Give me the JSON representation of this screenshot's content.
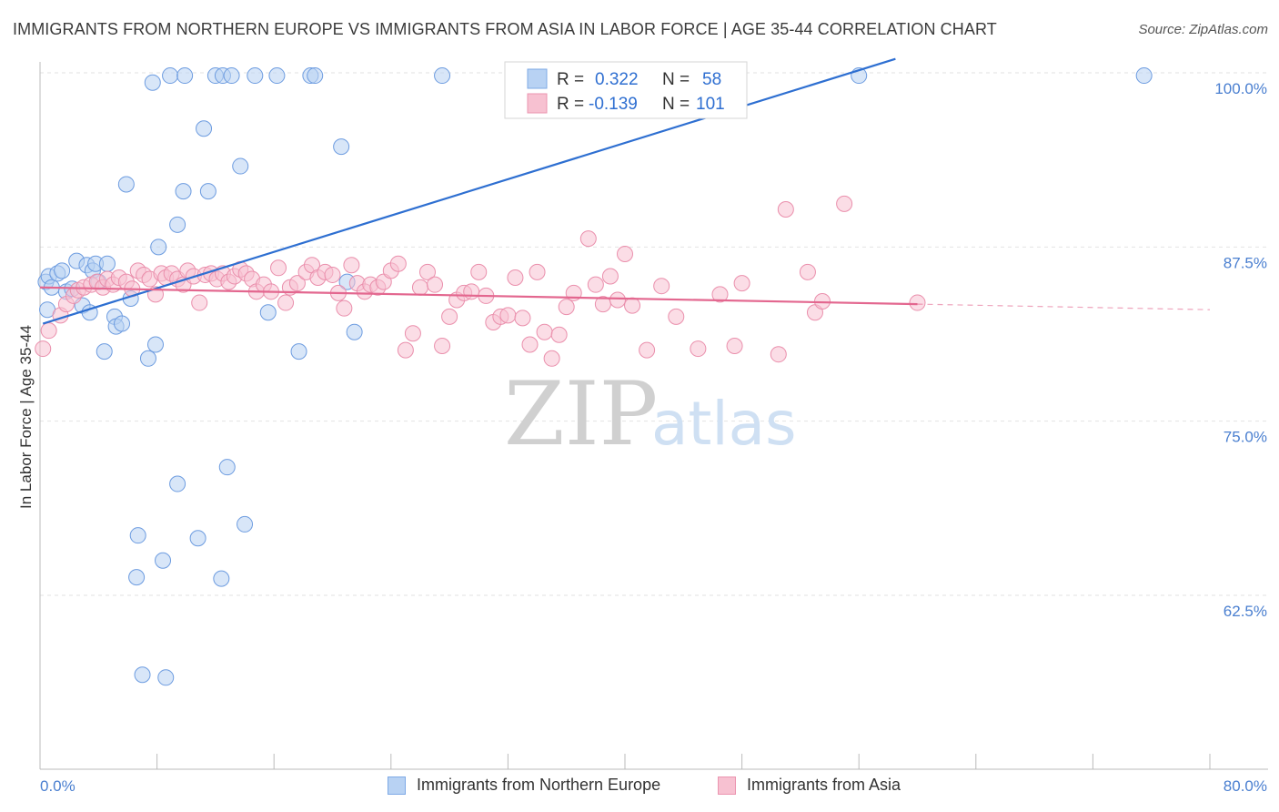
{
  "title": "IMMIGRANTS FROM NORTHERN EUROPE VS IMMIGRANTS FROM ASIA IN LABOR FORCE | AGE 35-44 CORRELATION CHART",
  "source": "Source: ZipAtlas.com",
  "colors": {
    "blue": "#2e6fd1",
    "blue_fill": "#b8d2f3",
    "pink": "#e3678f",
    "pink_fill": "#f7c1d1",
    "grid": "#e2e2e2",
    "tick_text": "#4a7fd0"
  },
  "legend": {
    "r_label": "R =",
    "n_label": "N =",
    "series1": {
      "r": "0.322",
      "n": "58"
    },
    "series2": {
      "r": "-0.139",
      "n": "101"
    }
  },
  "watermark": {
    "zip": "ZIP",
    "atlas": "atlas"
  },
  "bottom_legend": {
    "series1": "Immigrants from Northern Europe",
    "series2": "Immigrants from Asia"
  },
  "chart_data": {
    "type": "scatter",
    "title": "IMMIGRANTS FROM NORTHERN EUROPE VS IMMIGRANTS FROM ASIA IN LABOR FORCE | AGE 35-44 CORRELATION CHART",
    "xlabel": "",
    "ylabel": "In Labor Force | Age 35-44",
    "xlim": [
      0,
      80
    ],
    "ylim": [
      52,
      102
    ],
    "x_tick_labels": [
      "0.0%",
      "80.0%"
    ],
    "y_ticks": [
      {
        "value": 100,
        "label": "100.0%"
      },
      {
        "value": 87.5,
        "label": "87.5%"
      },
      {
        "value": 75,
        "label": "75.0%"
      },
      {
        "value": 62.5,
        "label": "62.5%"
      }
    ],
    "series": [
      {
        "name": "Immigrants from Northern Europe",
        "r": 0.322,
        "n": 58,
        "trend": [
          [
            0.2,
            82.0
          ],
          [
            58.5,
            101.0
          ]
        ],
        "points": [
          [
            0.4,
            85.0
          ],
          [
            0.6,
            85.4
          ],
          [
            0.8,
            84.6
          ],
          [
            1.2,
            85.6
          ],
          [
            1.5,
            85.8
          ],
          [
            1.8,
            84.3
          ],
          [
            2.2,
            84.5
          ],
          [
            2.5,
            86.5
          ],
          [
            2.9,
            83.3
          ],
          [
            3.2,
            86.2
          ],
          [
            3.4,
            82.8
          ],
          [
            3.6,
            85.8
          ],
          [
            3.8,
            86.3
          ],
          [
            4.0,
            85.0
          ],
          [
            4.4,
            80.0
          ],
          [
            4.6,
            86.3
          ],
          [
            5.1,
            82.5
          ],
          [
            5.2,
            81.8
          ],
          [
            5.6,
            82.0
          ],
          [
            5.9,
            92.0
          ],
          [
            6.2,
            83.8
          ],
          [
            6.6,
            63.8
          ],
          [
            6.7,
            66.8
          ],
          [
            7.0,
            56.8
          ],
          [
            7.4,
            79.5
          ],
          [
            7.7,
            99.3
          ],
          [
            7.9,
            80.5
          ],
          [
            8.1,
            87.5
          ],
          [
            8.4,
            65.0
          ],
          [
            8.6,
            56.6
          ],
          [
            8.9,
            99.8
          ],
          [
            9.4,
            70.5
          ],
          [
            9.4,
            89.1
          ],
          [
            9.8,
            91.5
          ],
          [
            9.9,
            99.8
          ],
          [
            10.8,
            66.6
          ],
          [
            11.2,
            96.0
          ],
          [
            11.5,
            91.5
          ],
          [
            12.0,
            99.8
          ],
          [
            12.4,
            63.7
          ],
          [
            12.5,
            99.8
          ],
          [
            12.8,
            71.7
          ],
          [
            13.1,
            99.8
          ],
          [
            13.7,
            93.3
          ],
          [
            14.0,
            67.6
          ],
          [
            14.7,
            99.8
          ],
          [
            15.6,
            82.8
          ],
          [
            16.2,
            99.8
          ],
          [
            17.7,
            80.0
          ],
          [
            18.5,
            99.8
          ],
          [
            18.8,
            99.8
          ],
          [
            20.6,
            94.7
          ],
          [
            21.0,
            85.0
          ],
          [
            21.5,
            81.4
          ],
          [
            27.5,
            99.8
          ],
          [
            56.0,
            99.8
          ],
          [
            75.5,
            99.8
          ],
          [
            0.5,
            83.0
          ]
        ]
      },
      {
        "name": "Immigrants from Asia",
        "r": -0.139,
        "n": 101,
        "trend": [
          [
            0.0,
            84.6
          ],
          [
            60.0,
            83.4
          ]
        ],
        "trend_dashed": [
          [
            60.0,
            83.4
          ],
          [
            80.0,
            83.0
          ]
        ],
        "points": [
          [
            0.2,
            80.2
          ],
          [
            0.6,
            81.5
          ],
          [
            1.4,
            82.6
          ],
          [
            1.8,
            83.4
          ],
          [
            2.3,
            84.0
          ],
          [
            2.6,
            84.4
          ],
          [
            3.0,
            84.6
          ],
          [
            3.5,
            84.8
          ],
          [
            3.9,
            85.0
          ],
          [
            4.3,
            84.6
          ],
          [
            4.6,
            85.2
          ],
          [
            5.0,
            84.8
          ],
          [
            5.4,
            85.3
          ],
          [
            5.9,
            85.0
          ],
          [
            6.3,
            84.5
          ],
          [
            6.7,
            85.8
          ],
          [
            7.1,
            85.5
          ],
          [
            7.5,
            85.2
          ],
          [
            7.9,
            84.1
          ],
          [
            8.3,
            85.6
          ],
          [
            8.6,
            85.3
          ],
          [
            9.0,
            85.6
          ],
          [
            9.4,
            85.2
          ],
          [
            9.8,
            84.8
          ],
          [
            10.1,
            85.8
          ],
          [
            10.5,
            85.4
          ],
          [
            10.9,
            83.5
          ],
          [
            11.3,
            85.5
          ],
          [
            11.7,
            85.6
          ],
          [
            12.1,
            85.2
          ],
          [
            12.5,
            85.6
          ],
          [
            12.9,
            85.0
          ],
          [
            13.3,
            85.4
          ],
          [
            13.7,
            85.9
          ],
          [
            14.1,
            85.6
          ],
          [
            14.5,
            85.2
          ],
          [
            14.8,
            84.3
          ],
          [
            15.3,
            84.8
          ],
          [
            15.8,
            84.3
          ],
          [
            16.3,
            86.0
          ],
          [
            16.8,
            83.5
          ],
          [
            17.1,
            84.6
          ],
          [
            17.6,
            84.9
          ],
          [
            18.2,
            85.7
          ],
          [
            18.6,
            86.2
          ],
          [
            19.0,
            85.3
          ],
          [
            19.5,
            85.7
          ],
          [
            20.0,
            85.5
          ],
          [
            20.4,
            84.2
          ],
          [
            20.8,
            83.1
          ],
          [
            21.3,
            86.2
          ],
          [
            21.7,
            84.9
          ],
          [
            22.2,
            84.3
          ],
          [
            22.6,
            84.8
          ],
          [
            23.1,
            84.6
          ],
          [
            23.5,
            85.0
          ],
          [
            24.0,
            85.8
          ],
          [
            24.5,
            86.3
          ],
          [
            25.0,
            80.1
          ],
          [
            25.5,
            81.3
          ],
          [
            26.0,
            84.6
          ],
          [
            26.5,
            85.7
          ],
          [
            27.0,
            84.8
          ],
          [
            27.5,
            80.4
          ],
          [
            28.0,
            82.5
          ],
          [
            28.5,
            83.7
          ],
          [
            29.0,
            84.2
          ],
          [
            29.5,
            84.3
          ],
          [
            30.0,
            85.7
          ],
          [
            30.5,
            84.0
          ],
          [
            31.0,
            82.1
          ],
          [
            31.5,
            82.5
          ],
          [
            32.0,
            82.6
          ],
          [
            32.5,
            85.3
          ],
          [
            33.0,
            82.4
          ],
          [
            33.5,
            80.5
          ],
          [
            34.0,
            85.7
          ],
          [
            34.5,
            81.4
          ],
          [
            35.0,
            79.5
          ],
          [
            35.5,
            81.2
          ],
          [
            36.0,
            83.2
          ],
          [
            36.5,
            84.2
          ],
          [
            37.5,
            88.1
          ],
          [
            38.0,
            84.8
          ],
          [
            38.5,
            83.4
          ],
          [
            39.0,
            85.4
          ],
          [
            39.5,
            83.7
          ],
          [
            40.0,
            87.0
          ],
          [
            40.5,
            83.3
          ],
          [
            41.5,
            80.1
          ],
          [
            42.5,
            84.7
          ],
          [
            43.5,
            82.5
          ],
          [
            45.0,
            80.2
          ],
          [
            46.5,
            84.1
          ],
          [
            47.5,
            80.4
          ],
          [
            48.0,
            84.9
          ],
          [
            50.5,
            79.8
          ],
          [
            51.0,
            90.2
          ],
          [
            52.5,
            85.7
          ],
          [
            53.0,
            82.8
          ],
          [
            53.5,
            83.6
          ],
          [
            55.0,
            90.6
          ],
          [
            60.0,
            83.5
          ]
        ]
      }
    ]
  },
  "y_axis_title": "In Labor Force | Age 35-44"
}
